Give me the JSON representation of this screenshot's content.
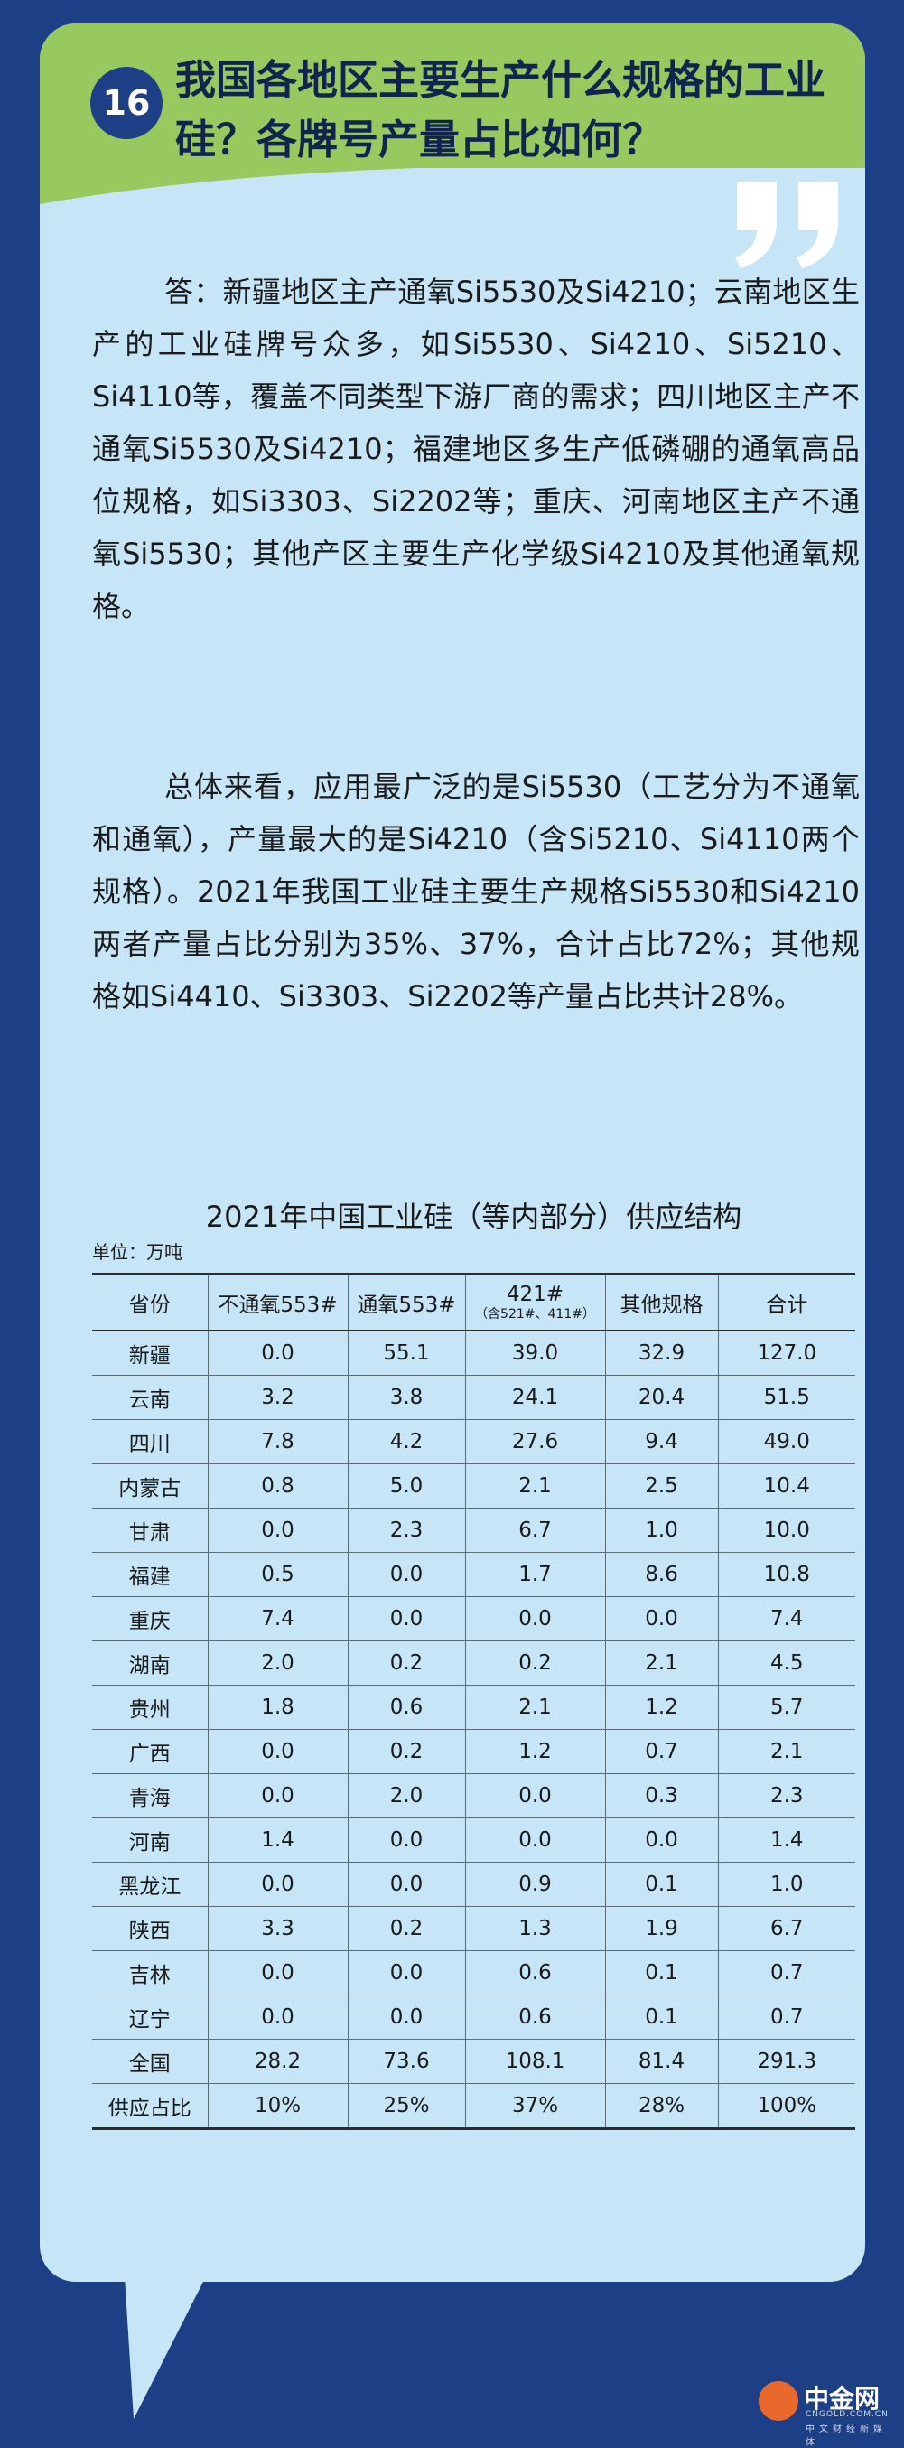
{
  "header": {
    "number": "16",
    "title": "我国各地区主要生产什么规格的工业硅？各牌号产量占比如何？"
  },
  "paragraphs": [
    "答：新疆地区主产通氧Si5530及Si4210；云南地区生产的工业硅牌号众多，如Si5530、Si4210、Si5210、Si4110等，覆盖不同类型下游厂商的需求；四川地区主产不通氧Si5530及Si4210；福建地区多生产低磷硼的通氧高品位规格，如Si3303、Si2202等；重庆、河南地区主产不通氧Si5530；其他产区主要生产化学级Si4210及其他通氧规格。",
    "总体来看，应用最广泛的是Si5530（工艺分为不通氧和通氧），产量最大的是Si4210（含Si5210、Si4110两个规格）。2021年我国工业硅主要生产规格Si5530和Si4210两者产量占比分别为35%、37%，合计占比72%；其他规格如Si4410、Si3303、Si2202等产量占比共计28%。"
  ],
  "table": {
    "title": "2021年中国工业硅（等内部分）供应结构",
    "unit": "单位：万吨",
    "headers": [
      "省份",
      "不通氧553#",
      "通氧553#",
      "421#",
      "其他规格",
      "合计"
    ],
    "header_sub": "（含521#、411#）",
    "rows": [
      [
        "新疆",
        "0.0",
        "55.1",
        "39.0",
        "32.9",
        "127.0"
      ],
      [
        "云南",
        "3.2",
        "3.8",
        "24.1",
        "20.4",
        "51.5"
      ],
      [
        "四川",
        "7.8",
        "4.2",
        "27.6",
        "9.4",
        "49.0"
      ],
      [
        "内蒙古",
        "0.8",
        "5.0",
        "2.1",
        "2.5",
        "10.4"
      ],
      [
        "甘肃",
        "0.0",
        "2.3",
        "6.7",
        "1.0",
        "10.0"
      ],
      [
        "福建",
        "0.5",
        "0.0",
        "1.7",
        "8.6",
        "10.8"
      ],
      [
        "重庆",
        "7.4",
        "0.0",
        "0.0",
        "0.0",
        "7.4"
      ],
      [
        "湖南",
        "2.0",
        "0.2",
        "0.2",
        "2.1",
        "4.5"
      ],
      [
        "贵州",
        "1.8",
        "0.6",
        "2.1",
        "1.2",
        "5.7"
      ],
      [
        "广西",
        "0.0",
        "0.2",
        "1.2",
        "0.7",
        "2.1"
      ],
      [
        "青海",
        "0.0",
        "2.0",
        "0.0",
        "0.3",
        "2.3"
      ],
      [
        "河南",
        "1.4",
        "0.0",
        "0.0",
        "0.0",
        "1.4"
      ],
      [
        "黑龙江",
        "0.0",
        "0.0",
        "0.9",
        "0.1",
        "1.0"
      ],
      [
        "陕西",
        "3.3",
        "0.2",
        "1.3",
        "1.9",
        "6.7"
      ],
      [
        "吉林",
        "0.0",
        "0.0",
        "0.6",
        "0.1",
        "0.7"
      ],
      [
        "辽宁",
        "0.0",
        "0.0",
        "0.6",
        "0.1",
        "0.7"
      ],
      [
        "全国",
        "28.2",
        "73.6",
        "108.1",
        "81.4",
        "291.3"
      ],
      [
        "供应占比",
        "10%",
        "25%",
        "37%",
        "28%",
        "100%"
      ]
    ]
  },
  "logo": {
    "name": "中金网",
    "domain": "CNGOLD.COM.CN",
    "tagline": "中文财经新媒体"
  },
  "colors": {
    "background": "#1d3f86",
    "card": "#c6e6f8",
    "header_green": "#97c95e",
    "accent_orange": "#e8692b"
  }
}
